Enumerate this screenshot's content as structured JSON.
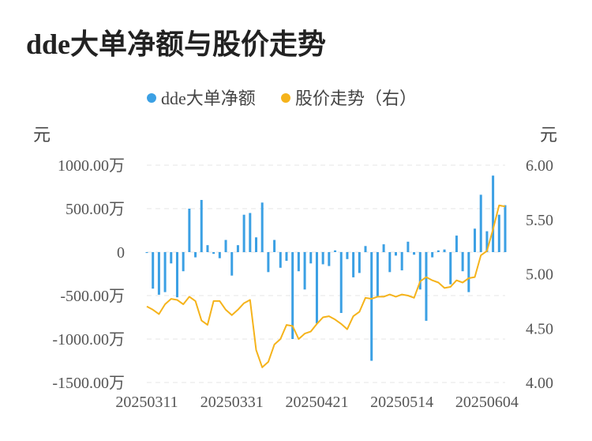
{
  "title": "dde大单净额与股价走势",
  "chart_data": {
    "type": "bar+line",
    "legend": [
      {
        "name": "dde大单净额",
        "color": "#3ba0e4"
      },
      {
        "name": "股价走势（右）",
        "color": "#f5b31b"
      }
    ],
    "left_unit": "元",
    "right_unit": "元",
    "left_ticks": [
      "1000.00万",
      "500.00万",
      "0",
      "-500.00万",
      "-1000.00万",
      "-1500.00万"
    ],
    "left_tick_values": [
      1000,
      500,
      0,
      -500,
      -1000,
      -1500
    ],
    "right_ticks": [
      "6.00",
      "5.50",
      "5.00",
      "4.50",
      "4.00"
    ],
    "right_tick_values": [
      6.0,
      5.5,
      5.0,
      4.5,
      4.0
    ],
    "left_range": [
      -1500,
      1000
    ],
    "right_range": [
      4.0,
      6.0
    ],
    "x_tick_labels": [
      "20250311",
      "20250331",
      "20250421",
      "20250514",
      "20250604"
    ],
    "x_tick_indices": [
      0,
      14,
      28,
      42,
      56
    ],
    "grid": true,
    "series": [
      {
        "name": "dde大单净额",
        "type": "bar",
        "unit": "万元",
        "values": [
          -10,
          -420,
          -490,
          -460,
          -130,
          -520,
          -220,
          500,
          -60,
          600,
          80,
          -20,
          -70,
          140,
          -270,
          80,
          430,
          450,
          170,
          570,
          -230,
          140,
          -180,
          -100,
          -1000,
          -220,
          -430,
          -130,
          -820,
          -140,
          -160,
          20,
          -700,
          -80,
          -290,
          -240,
          70,
          -1250,
          -520,
          90,
          -230,
          -40,
          -210,
          120,
          -30,
          -430,
          -790,
          -60,
          20,
          30,
          -370,
          190,
          -220,
          -460,
          270,
          660,
          240,
          880,
          430,
          540
        ]
      },
      {
        "name": "股价走势（右）",
        "type": "line",
        "values": [
          4.7,
          4.67,
          4.63,
          4.72,
          4.77,
          4.76,
          4.72,
          4.79,
          4.75,
          4.57,
          4.53,
          4.75,
          4.75,
          4.67,
          4.62,
          4.67,
          4.73,
          4.76,
          4.3,
          4.14,
          4.19,
          4.35,
          4.4,
          4.53,
          4.52,
          4.4,
          4.45,
          4.47,
          4.54,
          4.6,
          4.61,
          4.58,
          4.54,
          4.49,
          4.61,
          4.65,
          4.78,
          4.77,
          4.79,
          4.79,
          4.81,
          4.79,
          4.81,
          4.8,
          4.78,
          4.93,
          4.97,
          4.94,
          4.92,
          4.87,
          4.88,
          4.94,
          4.92,
          4.96,
          4.97,
          5.17,
          5.21,
          5.41,
          5.63,
          5.62
        ]
      }
    ]
  }
}
